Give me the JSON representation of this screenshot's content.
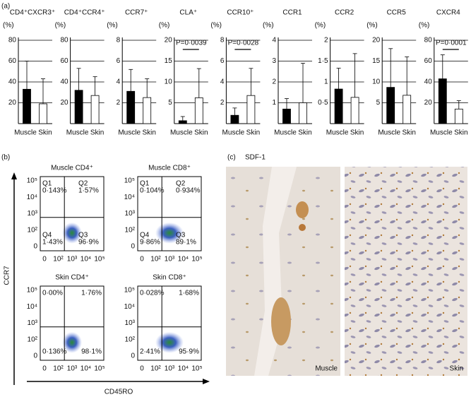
{
  "panel_labels": {
    "a": "(a)",
    "b": "(b)",
    "c": "(c)"
  },
  "chart_data": [
    {
      "type": "bar",
      "title": "CD4⁺CXCR3⁺",
      "y_unit": "(%)",
      "categories": [
        "Muscle",
        "Skin"
      ],
      "values": [
        33,
        19
      ],
      "errors": [
        27,
        24
      ],
      "colors": [
        "#000000",
        "#ffffff"
      ],
      "ylim": [
        0,
        80
      ],
      "yticks": [
        20,
        40,
        60,
        80
      ]
    },
    {
      "type": "bar",
      "title": "CD4⁺CCR4⁺",
      "y_unit": "(%)",
      "categories": [
        "Muscle",
        "Skin"
      ],
      "values": [
        32,
        27
      ],
      "errors": [
        21,
        18
      ],
      "colors": [
        "#000000",
        "#ffffff"
      ],
      "ylim": [
        0,
        80
      ],
      "yticks": [
        20,
        40,
        60,
        80
      ]
    },
    {
      "type": "bar",
      "title": "CCR7⁺",
      "y_unit": "(%)",
      "categories": [
        "Muscle",
        "Skin"
      ],
      "values": [
        3.1,
        2.5
      ],
      "errors": [
        2.1,
        1.8
      ],
      "colors": [
        "#000000",
        "#ffffff"
      ],
      "ylim": [
        0,
        8
      ],
      "yticks": [
        2,
        4,
        6,
        8
      ]
    },
    {
      "type": "bar",
      "title": "CLA⁺",
      "y_unit": "(%)",
      "categories": [
        "Muscle",
        "Skin"
      ],
      "values": [
        0.7,
        6.2
      ],
      "errors": [
        1,
        7
      ],
      "colors": [
        "#000000",
        "#ffffff"
      ],
      "ylim": [
        0,
        20
      ],
      "yticks": [
        5,
        10,
        15,
        20
      ],
      "annotation": "P=0·0039"
    },
    {
      "type": "bar",
      "title": "CCR10⁺",
      "y_unit": "(%)",
      "categories": [
        "Muscle",
        "Skin"
      ],
      "values": [
        0.8,
        2.7
      ],
      "errors": [
        0.7,
        2.6
      ],
      "colors": [
        "#000000",
        "#ffffff"
      ],
      "ylim": [
        0,
        8
      ],
      "yticks": [
        2,
        4,
        6,
        8
      ],
      "annotation": "P=0·0028"
    },
    {
      "type": "bar",
      "title": "CCR1",
      "y_unit": "(%)",
      "categories": [
        "Muscle",
        "Skin"
      ],
      "values": [
        0.7,
        1
      ],
      "errors": [
        0.5,
        1.9
      ],
      "colors": [
        "#000000",
        "#ffffff"
      ],
      "ylim": [
        0,
        4
      ],
      "yticks": [
        1,
        2,
        3,
        4
      ]
    },
    {
      "type": "bar",
      "title": "CCR2",
      "y_unit": "(%)",
      "categories": [
        "Muscle",
        "Skin"
      ],
      "values": [
        0.83,
        0.63
      ],
      "errors": [
        0.5,
        1.05
      ],
      "colors": [
        "#000000",
        "#ffffff"
      ],
      "ylim": [
        0,
        2
      ],
      "yticks": [
        {
          "value": 0.5,
          "label": "0·5"
        },
        1,
        {
          "value": 1.5,
          "label": "1·5"
        },
        2
      ]
    },
    {
      "type": "bar",
      "title": "CCR5",
      "y_unit": "(%)",
      "categories": [
        "Muscle",
        "Skin"
      ],
      "values": [
        8.7,
        6.8
      ],
      "errors": [
        9.3,
        9.2
      ],
      "colors": [
        "#000000",
        "#ffffff"
      ],
      "ylim": [
        0,
        20
      ],
      "yticks": [
        5,
        10,
        15,
        20
      ]
    },
    {
      "type": "bar",
      "title": "CXCR4",
      "y_unit": "(%)",
      "categories": [
        "Muscle",
        "Skin"
      ],
      "values": [
        43,
        14
      ],
      "errors": [
        23,
        8
      ],
      "colors": [
        "#000000",
        "#ffffff"
      ],
      "ylim": [
        0,
        80
      ],
      "yticks": [
        20,
        40,
        60,
        80
      ],
      "annotation": "P=0·0001"
    }
  ],
  "flow": {
    "y_label": "CCR7",
    "x_label": "CD45RO",
    "xticks": [
      "0",
      "10²",
      "10³",
      "10⁴",
      "10⁵"
    ],
    "yticks": [
      "10⁵",
      "10⁴",
      "10³",
      "10²",
      "0"
    ],
    "plots": [
      {
        "title": "Muscle CD4⁺",
        "quadrants": [
          {
            "name": "Q1",
            "value": "0·143%"
          },
          {
            "name": "Q2",
            "value": "1·57%"
          },
          {
            "name": "Q3",
            "value": "96·9%"
          },
          {
            "name": "Q4",
            "value": "1·43%"
          }
        ]
      },
      {
        "title": "Muscle CD8⁺",
        "quadrants": [
          {
            "name": "Q1",
            "value": "0·104%"
          },
          {
            "name": "Q2",
            "value": "0·934%"
          },
          {
            "name": "Q3",
            "value": "89·1%"
          },
          {
            "name": "Q4",
            "value": "9·86%"
          }
        ]
      },
      {
        "title": "Skin CD4⁺",
        "quadrants": [
          {
            "value": "0·00%"
          },
          {
            "value": "1·76%"
          },
          {
            "value": "98·1%"
          },
          {
            "value": "0·136%"
          }
        ]
      },
      {
        "title": "Skin CD8⁺",
        "quadrants": [
          {
            "value": "0·028%"
          },
          {
            "value": "1·68%"
          },
          {
            "value": "95·9%"
          },
          {
            "value": "2·41%"
          }
        ]
      }
    ]
  },
  "images": {
    "title": "SDF-1",
    "left": "Muscle",
    "right": "Skin"
  }
}
